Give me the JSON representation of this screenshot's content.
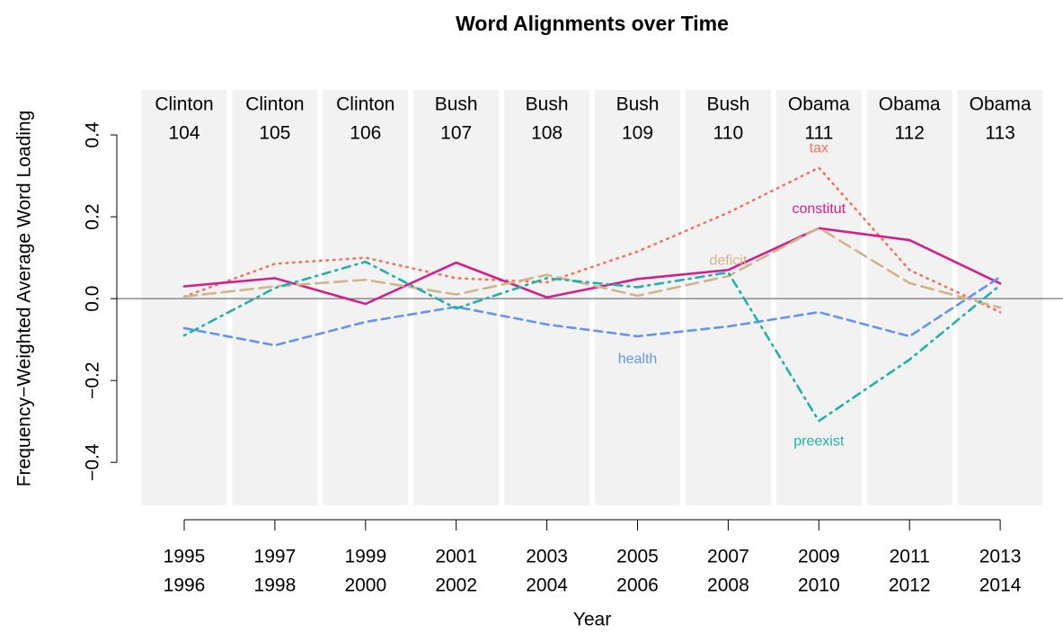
{
  "chart_data": {
    "type": "line",
    "title": "Word Alignments over Time",
    "x_label": "Year",
    "y_label": "Frequency−Weighted Average Word Loading",
    "categories": [
      [
        "1995",
        "1996"
      ],
      [
        "1997",
        "1998"
      ],
      [
        "1999",
        "2000"
      ],
      [
        "2001",
        "2002"
      ],
      [
        "2003",
        "2004"
      ],
      [
        "2005",
        "2006"
      ],
      [
        "2007",
        "2008"
      ],
      [
        "2009",
        "2010"
      ],
      [
        "2011",
        "2012"
      ],
      [
        "2013",
        "2014"
      ]
    ],
    "panel_labels": [
      [
        "Clinton",
        "104"
      ],
      [
        "Clinton",
        "105"
      ],
      [
        "Clinton",
        "106"
      ],
      [
        "Bush",
        "107"
      ],
      [
        "Bush",
        "108"
      ],
      [
        "Bush",
        "109"
      ],
      [
        "Bush",
        "110"
      ],
      [
        "Obama",
        "111"
      ],
      [
        "Obama",
        "112"
      ],
      [
        "Obama",
        "113"
      ]
    ],
    "ylim": [
      -0.505,
      0.51
    ],
    "yticks": [
      {
        "value": -0.4,
        "label": "−0.4"
      },
      {
        "value": -0.2,
        "label": "−0.2"
      },
      {
        "value": 0,
        "label": "0.0"
      },
      0.2,
      0.4
    ],
    "hline": 0,
    "series": [
      {
        "name": "tax",
        "color": "#f4735b",
        "linestyle": "dotted",
        "values": [
          0.005,
          0.085,
          0.1,
          0.05,
          0.04,
          0.115,
          0.21,
          0.32,
          0.07,
          -0.033
        ]
      },
      {
        "name": "constitut",
        "color": "#d0208f",
        "linestyle": "solid",
        "values": [
          0.03,
          0.05,
          -0.013,
          0.088,
          0.003,
          0.048,
          0.07,
          0.172,
          0.143,
          0.037
        ]
      },
      {
        "name": "deficit",
        "color": "#d2b48c",
        "linestyle": "longdash",
        "values": [
          0.005,
          0.03,
          0.046,
          0.01,
          0.058,
          0.007,
          0.055,
          0.173,
          0.038,
          -0.022
        ]
      },
      {
        "name": "health",
        "color": "#6495ed",
        "linestyle": "dashed",
        "values": [
          -0.072,
          -0.114,
          -0.057,
          -0.02,
          -0.063,
          -0.092,
          -0.068,
          -0.033,
          -0.092,
          0.053
        ]
      },
      {
        "name": "preexist",
        "color": "#20b2aa",
        "linestyle": "dotdash",
        "values": [
          -0.09,
          0.026,
          0.09,
          -0.024,
          0.05,
          0.028,
          0.064,
          -0.299,
          -0.149,
          0.033
        ]
      }
    ]
  }
}
